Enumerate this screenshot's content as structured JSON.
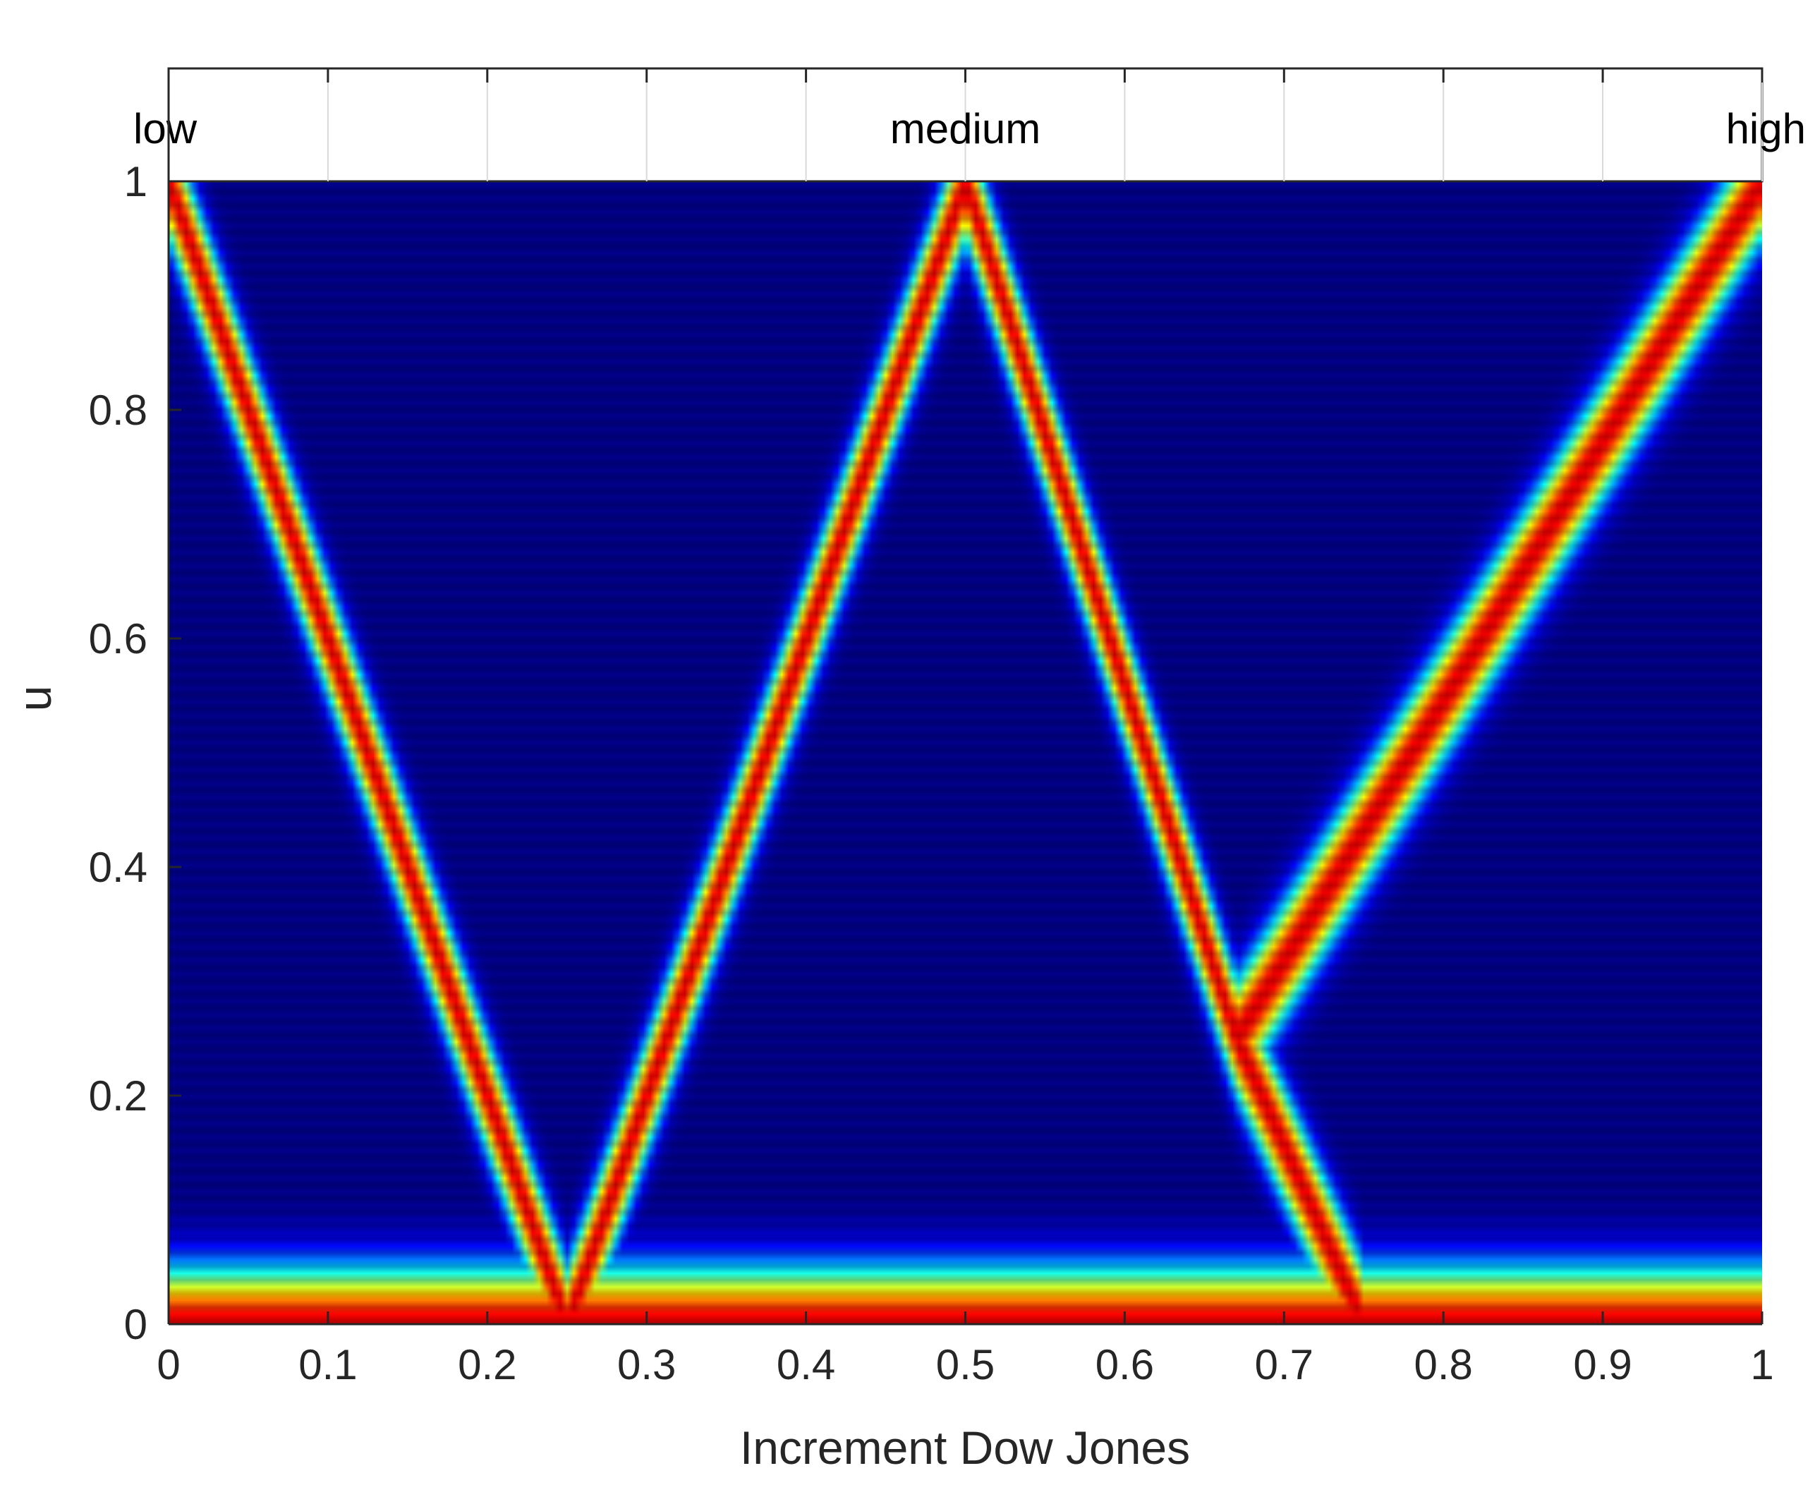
{
  "chart_data": {
    "type": "heatmap",
    "title": "",
    "xlabel": "Increment Dow Jones",
    "ylabel": "u",
    "xlim": [
      0,
      1
    ],
    "ylim": [
      0,
      1
    ],
    "x_ticks": [
      "0",
      "0.1",
      "0.2",
      "0.3",
      "0.4",
      "0.5",
      "0.6",
      "0.7",
      "0.8",
      "0.9",
      "1"
    ],
    "y_ticks": [
      "0",
      "0.2",
      "0.4",
      "0.6",
      "0.8",
      "1"
    ],
    "colormap": "jet",
    "grid": false,
    "membership_labels": [
      {
        "text": "low",
        "x": 0
      },
      {
        "text": "medium",
        "x": 0.5
      },
      {
        "text": "high",
        "x": 1
      }
    ],
    "series": [
      {
        "shape": "left-shoulder",
        "points": [
          [
            0,
            1
          ],
          [
            0.25,
            0
          ]
        ]
      },
      {
        "shape": "triangle",
        "points": [
          [
            0.25,
            0
          ],
          [
            0.5,
            1
          ],
          [
            0.67,
            0.25
          ],
          [
            0.75,
            0
          ]
        ]
      },
      {
        "shape": "right-shoulder",
        "points": [
          [
            0.67,
            0.25
          ],
          [
            1,
            1
          ]
        ]
      }
    ]
  }
}
